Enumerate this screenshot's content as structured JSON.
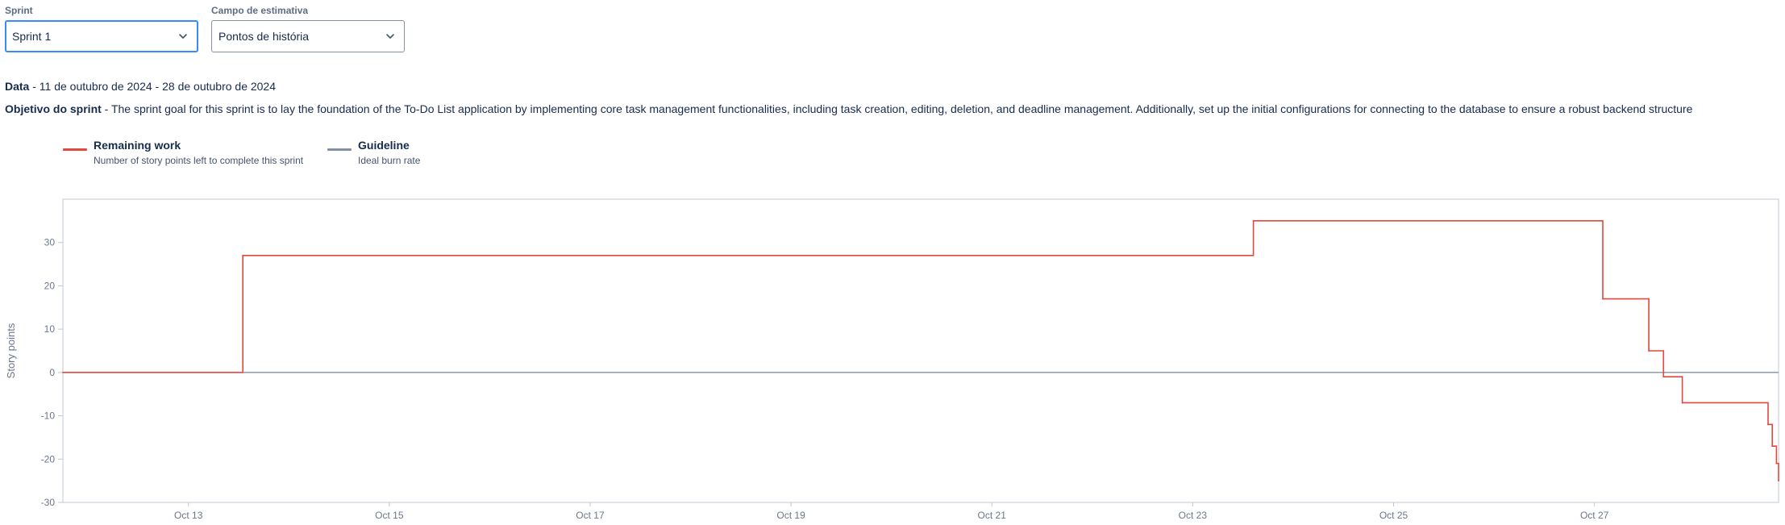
{
  "filters": {
    "sprint": {
      "label": "Sprint",
      "value": "Sprint 1"
    },
    "estimation": {
      "label": "Campo de estimativa",
      "value": "Pontos de história"
    }
  },
  "sprint_info": {
    "date_label": "Data",
    "date_value": "- 11 de outubro de 2024 - 28 de outubro de 2024",
    "goal_label": "Objetivo do sprint",
    "goal_value": "- The sprint goal for this sprint is to lay the foundation of the To-Do List application by implementing core task management functionalities, including task creation, editing, deletion, and deadline management. Additionally, set up the initial configurations for connecting to the database to ensure a robust backend structure"
  },
  "legend": [
    {
      "name": "Remaining work",
      "description": "Number of story points left to complete this sprint",
      "color": "#e2483d"
    },
    {
      "name": "Guideline",
      "description": "Ideal burn rate",
      "color": "#8590a2"
    }
  ],
  "chart_data": {
    "type": "line",
    "ylabel": "Story points",
    "xlabel": "",
    "xlim": [
      "2024-10-11T18:00",
      "2024-10-28T20:00"
    ],
    "ylim": [
      -30,
      40
    ],
    "yticks": [
      -30,
      -20,
      -10,
      0,
      10,
      20,
      30
    ],
    "xticks": [
      {
        "label": "Oct 13",
        "date": "2024-10-13"
      },
      {
        "label": "Oct 15",
        "date": "2024-10-15"
      },
      {
        "label": "Oct 17",
        "date": "2024-10-17"
      },
      {
        "label": "Oct 19",
        "date": "2024-10-19"
      },
      {
        "label": "Oct 21",
        "date": "2024-10-21"
      },
      {
        "label": "Oct 23",
        "date": "2024-10-23"
      },
      {
        "label": "Oct 25",
        "date": "2024-10-25"
      },
      {
        "label": "Oct 27",
        "date": "2024-10-27"
      }
    ],
    "series": [
      {
        "name": "Remaining work",
        "color": "#e2483d",
        "step": true,
        "points": [
          {
            "x": "2024-10-11T18:00",
            "y": 0
          },
          {
            "x": "2024-10-13T13:00",
            "y": 27
          },
          {
            "x": "2024-10-23T14:30",
            "y": 35
          },
          {
            "x": "2024-10-27T02:00",
            "y": 17
          },
          {
            "x": "2024-10-27T13:00",
            "y": 5
          },
          {
            "x": "2024-10-27T16:30",
            "y": -1
          },
          {
            "x": "2024-10-27T21:00",
            "y": -7
          },
          {
            "x": "2024-10-28T17:30",
            "y": -12
          },
          {
            "x": "2024-10-28T18:30",
            "y": -17
          },
          {
            "x": "2024-10-28T19:30",
            "y": -21
          },
          {
            "x": "2024-10-28T20:00",
            "y": -25
          }
        ]
      },
      {
        "name": "Guideline",
        "color": "#8590a2",
        "step": false,
        "points": [
          {
            "x": "2024-10-11T18:00",
            "y": 0
          },
          {
            "x": "2024-10-28T20:00",
            "y": 0
          }
        ]
      }
    ]
  }
}
